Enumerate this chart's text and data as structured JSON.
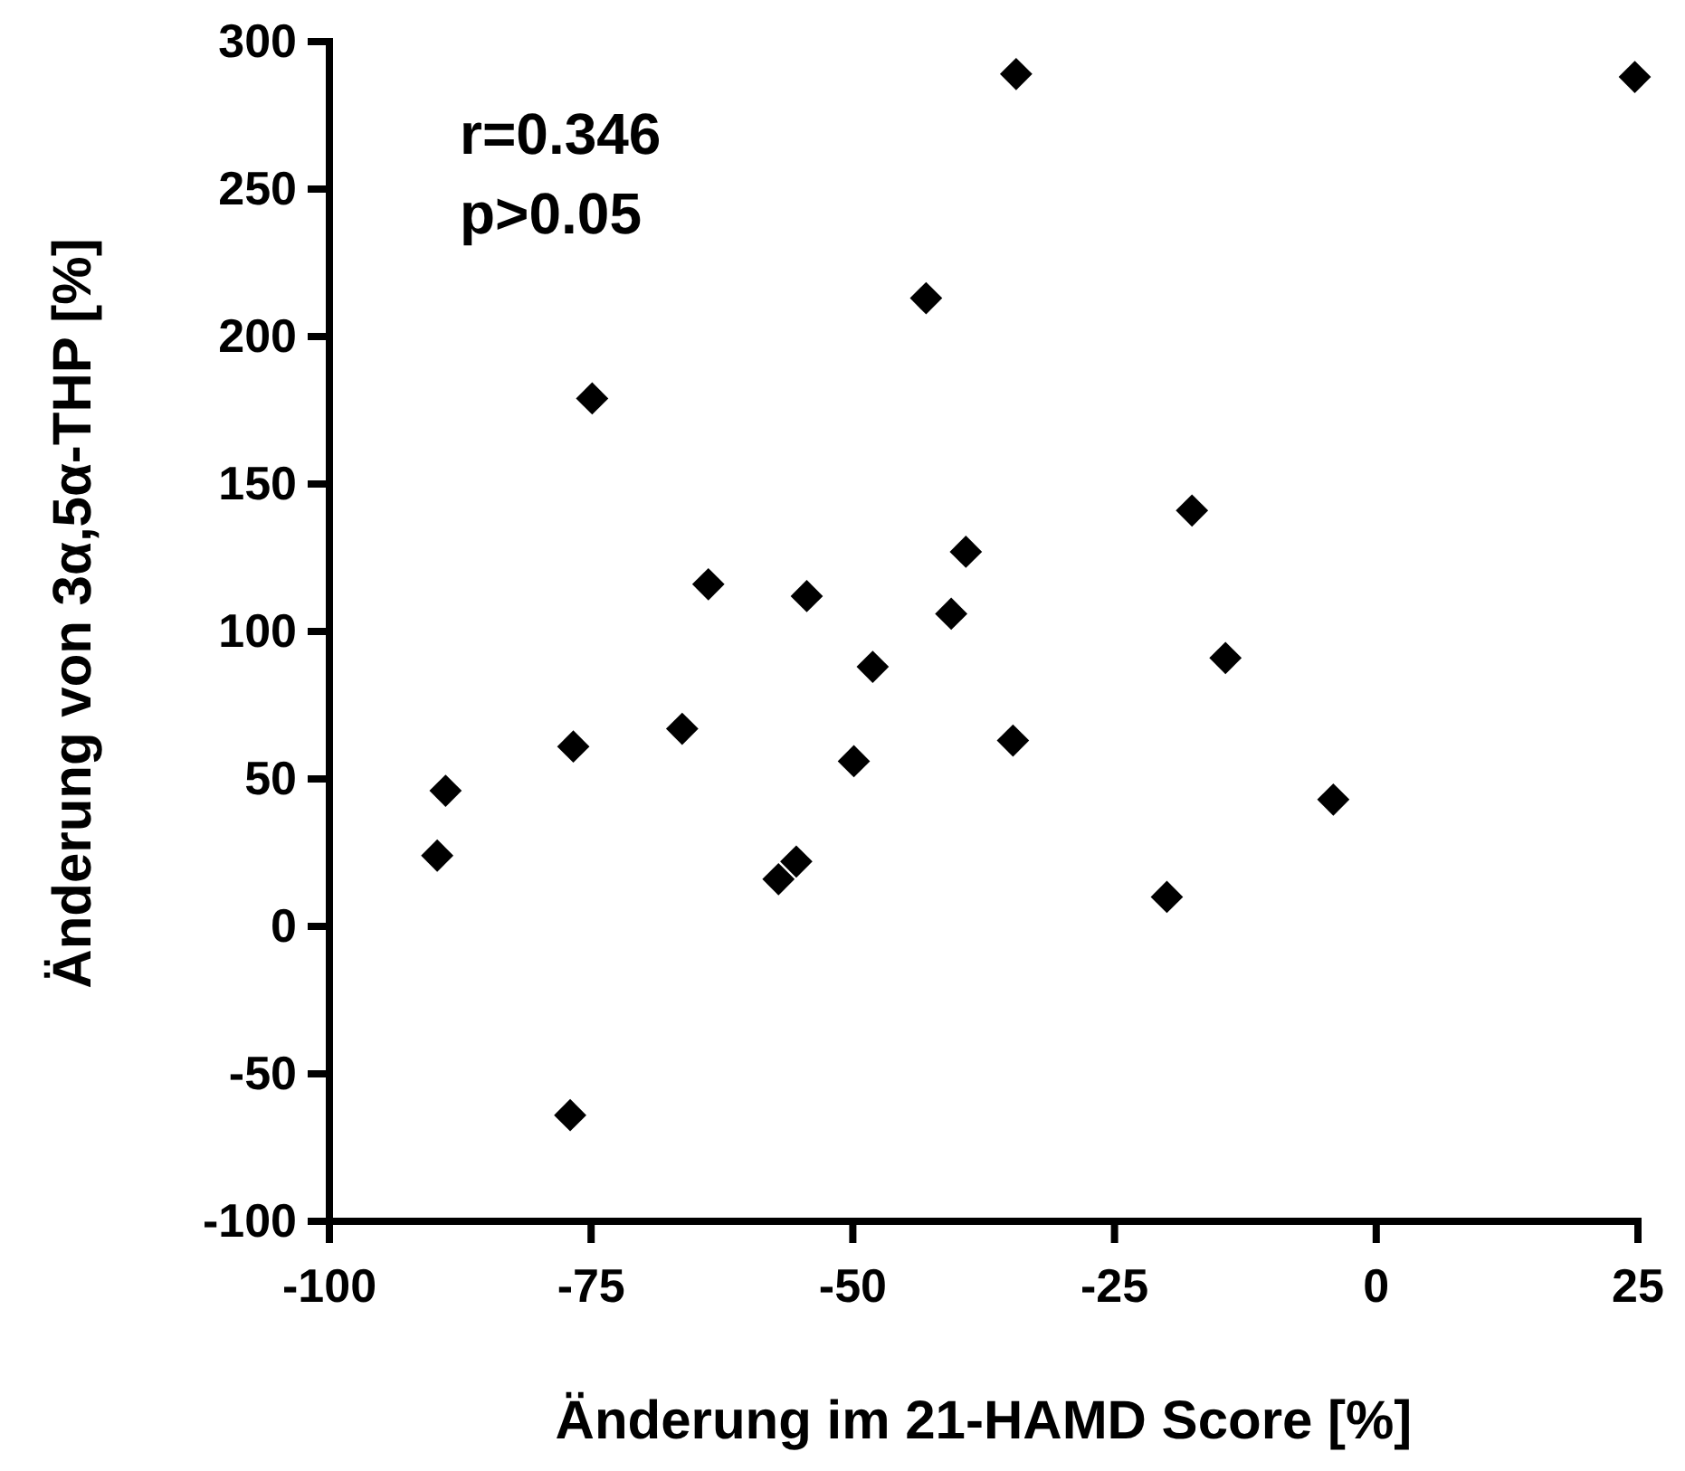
{
  "chart_data": {
    "type": "scatter",
    "xlabel": "Änderung im 21-HAMD Score [%]",
    "ylabel": "Änderung von 3α,5α-THP [%]",
    "annotations": [
      "r=0.346",
      "p>0.05"
    ],
    "x": [
      -89.7,
      -88.9,
      -77,
      -76.7,
      -74.9,
      -66.3,
      -63.8,
      -57.1,
      -55.4,
      -54.4,
      -49.9,
      -48.1,
      -43,
      -40.6,
      -39.2,
      -34.7,
      -34.4,
      -20,
      -17.6,
      -14.4,
      -4.1,
      24.7
    ],
    "series": [
      {
        "color": "#000000",
        "values": [
          24,
          46,
          -64,
          61,
          179,
          67,
          116,
          16,
          22,
          112,
          56,
          88,
          213,
          106,
          127,
          63,
          289,
          10,
          141,
          91,
          43,
          288
        ]
      }
    ],
    "marker": "diamond",
    "grid": false,
    "xlim": [
      -100,
      25
    ],
    "xticks": [
      -100,
      -75,
      -50,
      -25,
      0,
      25
    ],
    "ylim": [
      -100,
      300
    ],
    "yticks": [
      -100,
      -50,
      0,
      50,
      100,
      150,
      200,
      250,
      300
    ]
  }
}
